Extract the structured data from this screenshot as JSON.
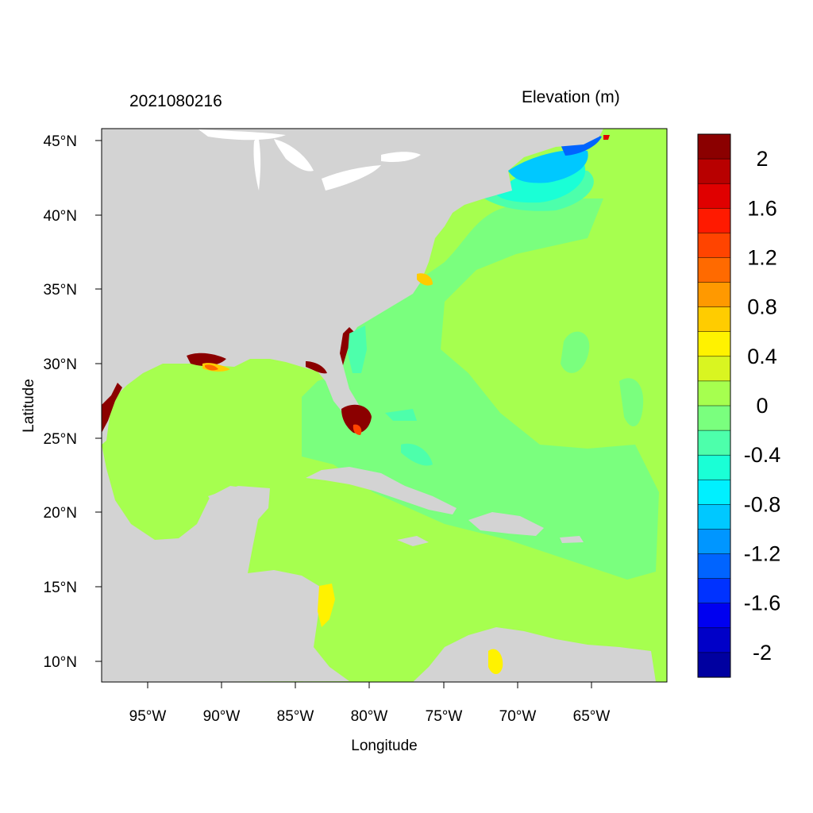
{
  "header": {
    "left_title": "2021080216",
    "right_title": "Elevation (m)"
  },
  "axes": {
    "xlabel": "Longitude",
    "ylabel": "Latitude",
    "x_ticks": [
      "95°W",
      "90°W",
      "85°W",
      "80°W",
      "75°W",
      "70°W",
      "65°W"
    ],
    "y_ticks": [
      "45°N",
      "40°N",
      "35°N",
      "30°N",
      "25°N",
      "20°N",
      "15°N",
      "10°N"
    ],
    "x_range_deg": [
      -98,
      -60
    ],
    "y_range_deg": [
      8.5,
      46
    ]
  },
  "colorbar": {
    "labels": [
      "2",
      "1.6",
      "1.2",
      "0.8",
      "0.4",
      "0",
      "-0.4",
      "-0.8",
      "-1.2",
      "-1.6",
      "-2"
    ],
    "colors": [
      "#8B0000",
      "#B80000",
      "#E00000",
      "#FF1A00",
      "#FF4400",
      "#FF6A00",
      "#FF9900",
      "#FFCC00",
      "#FFF200",
      "#D9F521",
      "#A6FF4F",
      "#7AFF7E",
      "#4DFFAB",
      "#1AFFD6",
      "#00F0FF",
      "#00C8FF",
      "#0096FF",
      "#0064FF",
      "#0032FF",
      "#0000F0",
      "#0000C8",
      "#0000A0"
    ]
  },
  "colors": {
    "land": "#D3D3D3",
    "sea_zero": "#A6FF4F",
    "sea_neg_small": "#7AFF7E"
  }
}
